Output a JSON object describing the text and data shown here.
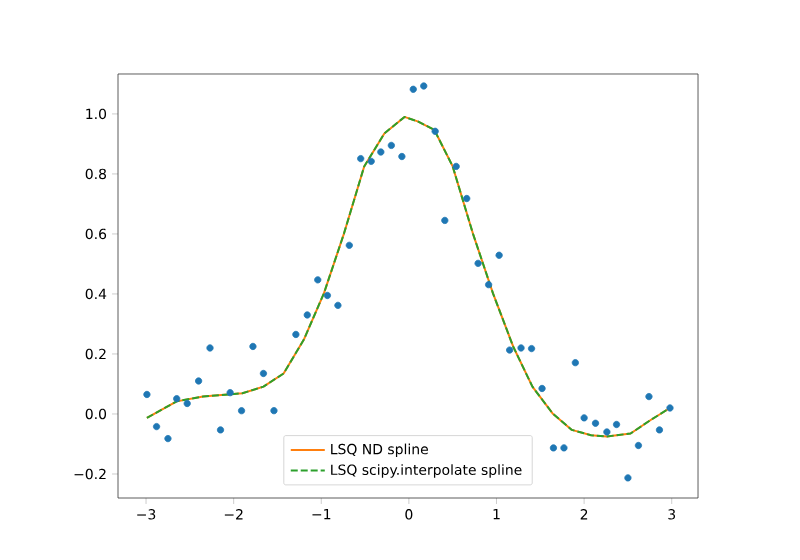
{
  "chart_data": {
    "type": "scatter",
    "xlim": [
      -3.32,
      3.3
    ],
    "ylim": [
      -0.28,
      1.133
    ],
    "xticks": [
      {
        "value": -3,
        "label": "−3"
      },
      {
        "value": -2,
        "label": "−2"
      },
      {
        "value": -1,
        "label": "−1"
      },
      0,
      1,
      2,
      3
    ],
    "yticks": [
      {
        "value": -0.2,
        "label": "−0.2"
      },
      {
        "value": 0,
        "label": "0.0"
      },
      {
        "value": 0.2,
        "label": "0.2"
      },
      {
        "value": 0.4,
        "label": "0.4"
      },
      {
        "value": 0.6,
        "label": "0.6"
      },
      {
        "value": 0.8,
        "label": "0.8"
      },
      {
        "value": 1.0,
        "label": "1.0"
      }
    ],
    "grid": false,
    "legend": "bottom",
    "series": [
      {
        "color": "#1f77b4",
        "marker": "circle",
        "x": [
          -2.99,
          -2.88,
          -2.75,
          -2.65,
          -2.53,
          -2.4,
          -2.27,
          -2.15,
          -2.04,
          -1.91,
          -1.78,
          -1.66,
          -1.54,
          -1.29,
          -1.16,
          -1.04,
          -0.93,
          -0.81,
          -0.68,
          -0.55,
          -0.43,
          -0.32,
          -0.2,
          -0.08,
          0.05,
          0.17,
          0.3,
          0.41,
          0.54,
          0.66,
          0.79,
          0.91,
          1.03,
          1.15,
          1.28,
          1.4,
          1.52,
          1.65,
          1.77,
          1.9,
          2.0,
          2.13,
          2.26,
          2.37,
          2.5,
          2.62,
          2.74,
          2.86,
          2.98
        ],
        "values": [
          0.065,
          -0.042,
          -0.082,
          0.051,
          0.035,
          0.11,
          0.22,
          -0.053,
          0.071,
          0.011,
          0.225,
          0.135,
          0.011,
          0.265,
          0.33,
          0.447,
          0.395,
          0.362,
          0.562,
          0.851,
          0.842,
          0.873,
          0.895,
          0.858,
          1.082,
          1.093,
          0.942,
          0.645,
          0.825,
          0.718,
          0.502,
          0.431,
          0.529,
          0.213,
          0.22,
          0.218,
          0.085,
          -0.113,
          -0.113,
          0.171,
          -0.013,
          -0.031,
          -0.06,
          -0.035,
          -0.213,
          -0.105,
          0.058,
          -0.053,
          0.02
        ]
      },
      {
        "type": "line",
        "name": "LSQ ND spline",
        "color": "#ff7f0e",
        "marker": "none",
        "line_style": "solid",
        "x": [
          -2.99,
          -2.65,
          -2.35,
          -1.9,
          -1.66,
          -1.43,
          -1.2,
          -0.97,
          -0.74,
          -0.51,
          -0.28,
          -0.05,
          0.0,
          0.1,
          0.29,
          0.5,
          0.73,
          0.96,
          1.19,
          1.41,
          1.64,
          1.86,
          2.08,
          2.26,
          2.53,
          2.76,
          2.98
        ],
        "values": [
          -0.013,
          0.042,
          0.058,
          0.069,
          0.091,
          0.135,
          0.247,
          0.402,
          0.602,
          0.825,
          0.935,
          0.99,
          0.985,
          0.975,
          0.947,
          0.825,
          0.602,
          0.402,
          0.225,
          0.091,
          0.002,
          -0.053,
          -0.071,
          -0.075,
          -0.065,
          -0.02,
          0.02
        ]
      },
      {
        "type": "line",
        "name": "LSQ scipy.interpolate spline",
        "color": "#2ca02c",
        "marker": "none",
        "line_style": "dashed",
        "x": [
          -2.99,
          -2.65,
          -2.35,
          -1.9,
          -1.66,
          -1.43,
          -1.2,
          -0.97,
          -0.74,
          -0.51,
          -0.28,
          -0.05,
          0.0,
          0.1,
          0.29,
          0.5,
          0.73,
          0.96,
          1.19,
          1.41,
          1.64,
          1.86,
          2.08,
          2.26,
          2.53,
          2.76,
          2.98
        ],
        "values": [
          -0.013,
          0.042,
          0.058,
          0.069,
          0.091,
          0.135,
          0.247,
          0.402,
          0.602,
          0.825,
          0.935,
          0.99,
          0.985,
          0.975,
          0.947,
          0.825,
          0.602,
          0.402,
          0.225,
          0.091,
          0.002,
          -0.053,
          -0.071,
          -0.075,
          -0.065,
          -0.02,
          0.02
        ]
      }
    ]
  }
}
